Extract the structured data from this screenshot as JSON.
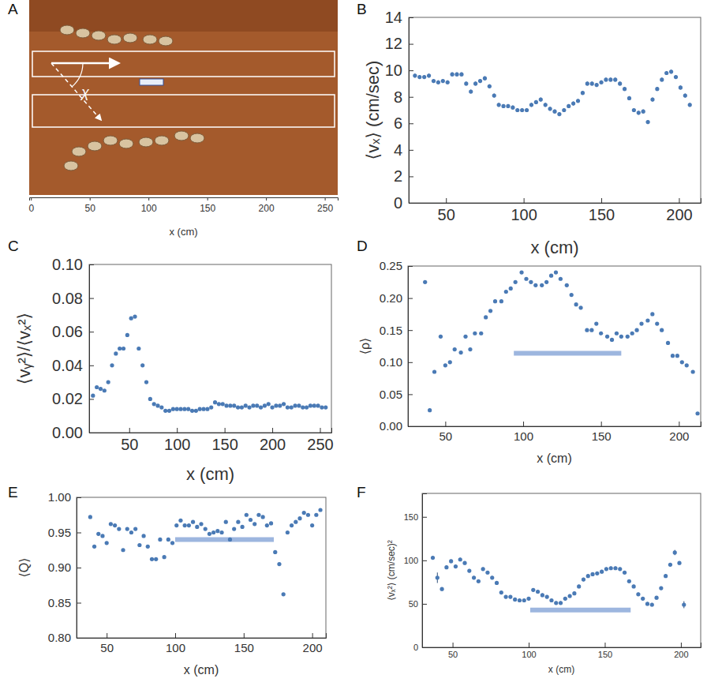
{
  "chart_data": [
    {
      "type": "image",
      "panel": "A",
      "annotation": "χ",
      "xlabel": "x (cm)",
      "xlim": [
        -1.5,
        261
      ],
      "xticks": [
        0,
        50,
        100,
        150,
        200,
        250
      ]
    },
    {
      "type": "scatter",
      "panel": "B",
      "xlabel": "x (cm)",
      "ylabel": "⟨vₓ⟩ (cm/sec)",
      "color": "#4a7ab5",
      "marker": "circle",
      "xlim": [
        26,
        214
      ],
      "xticks": [
        50,
        100,
        150,
        200
      ],
      "ylim": [
        0,
        14
      ],
      "yticks": [
        0,
        2,
        4,
        6,
        8,
        10,
        12,
        14
      ],
      "x": [
        30,
        33,
        36,
        39,
        42,
        45,
        48,
        51,
        54,
        57,
        60,
        63,
        66,
        69,
        72,
        75,
        78,
        81,
        84,
        87,
        90,
        93,
        96,
        99,
        102,
        105,
        108,
        111,
        114,
        117,
        120,
        123,
        126,
        129,
        132,
        135,
        138,
        141,
        144,
        147,
        150,
        153,
        156,
        159,
        162,
        165,
        168,
        171,
        174,
        177,
        180,
        183,
        186,
        189,
        192,
        195,
        198,
        201,
        204,
        207
      ],
      "values": [
        9.6,
        9.5,
        9.5,
        9.6,
        9.2,
        9.1,
        9.2,
        9.1,
        9.7,
        9.7,
        9.7,
        9.0,
        8.4,
        9.0,
        9.2,
        9.4,
        8.8,
        8.1,
        7.4,
        7.3,
        7.3,
        7.2,
        7.0,
        7.0,
        7.0,
        7.4,
        7.6,
        7.8,
        7.4,
        7.1,
        6.9,
        6.7,
        7.0,
        7.3,
        7.5,
        7.7,
        8.3,
        9.0,
        9.0,
        8.9,
        9.1,
        9.3,
        9.3,
        9.3,
        9.0,
        8.6,
        7.9,
        7.0,
        6.8,
        6.9,
        6.1,
        7.8,
        8.6,
        9.3,
        9.8,
        9.9,
        9.5,
        8.7,
        8.1,
        7.4
      ],
      "errors": [
        0.15,
        0.15,
        0.15,
        0.15,
        0.15,
        0.15,
        0.15,
        0.15,
        0.15,
        0.15,
        0.15,
        0.15,
        0.15,
        0.15,
        0.15,
        0.15,
        0.15,
        0.15,
        0.15,
        0.15,
        0.15,
        0.15,
        0.15,
        0.15,
        0.15,
        0.15,
        0.15,
        0.15,
        0.15,
        0.15,
        0.15,
        0.15,
        0.15,
        0.15,
        0.15,
        0.15,
        0.15,
        0.15,
        0.15,
        0.15,
        0.15,
        0.15,
        0.15,
        0.15,
        0.15,
        0.15,
        0.15,
        0.15,
        0.15,
        0.15,
        0.15,
        0.15,
        0.15,
        0.15,
        0.15,
        0.15,
        0.15,
        0.15,
        0.15,
        0.15
      ]
    },
    {
      "type": "scatter",
      "panel": "C",
      "xlabel": "x (cm)",
      "ylabel": "⟨vᵧ²⟩/⟨vₓ²⟩",
      "color": "#4a7ab5",
      "marker": "circle",
      "xlim": [
        8,
        262
      ],
      "xticks": [
        50,
        100,
        150,
        200,
        250
      ],
      "ylim": [
        0,
        0.1
      ],
      "yticks": [
        {
          "value": 0,
          "label": "0.00"
        },
        {
          "value": 0.02,
          "label": "0.02"
        },
        {
          "value": 0.04,
          "label": "0.04"
        },
        {
          "value": 0.06,
          "label": "0.06"
        },
        {
          "value": 0.08,
          "label": "0.08"
        },
        {
          "value": 0.1,
          "label": "0.10"
        }
      ],
      "x": [
        12,
        16,
        20,
        24,
        28,
        32,
        36,
        40,
        44,
        48,
        52,
        56,
        60,
        64,
        68,
        72,
        76,
        80,
        84,
        88,
        92,
        96,
        100,
        104,
        108,
        112,
        116,
        120,
        124,
        128,
        132,
        136,
        140,
        144,
        148,
        152,
        156,
        160,
        164,
        168,
        172,
        176,
        180,
        184,
        188,
        192,
        196,
        200,
        204,
        208,
        212,
        216,
        220,
        224,
        228,
        232,
        236,
        240,
        244,
        248,
        252,
        256
      ],
      "values": [
        0.022,
        0.027,
        0.026,
        0.025,
        0.03,
        0.04,
        0.047,
        0.05,
        0.05,
        0.058,
        0.068,
        0.069,
        0.05,
        0.04,
        0.03,
        0.02,
        0.017,
        0.016,
        0.015,
        0.013,
        0.013,
        0.014,
        0.014,
        0.014,
        0.014,
        0.014,
        0.013,
        0.013,
        0.014,
        0.014,
        0.014,
        0.015,
        0.018,
        0.017,
        0.017,
        0.016,
        0.016,
        0.016,
        0.015,
        0.015,
        0.016,
        0.015,
        0.016,
        0.016,
        0.015,
        0.016,
        0.017,
        0.015,
        0.016,
        0.016,
        0.017,
        0.015,
        0.015,
        0.016,
        0.016,
        0.015,
        0.015,
        0.016,
        0.016,
        0.016,
        0.015,
        0.015
      ]
    },
    {
      "type": "scatter",
      "panel": "D",
      "xlabel": "x (cm)",
      "ylabel": "⟨ρ⟩",
      "color": "#4a7ab5",
      "marker": "circle",
      "xlim": [
        26,
        214
      ],
      "xticks": [
        50,
        100,
        150,
        200
      ],
      "ylim": [
        0,
        0.25
      ],
      "yticks": [
        {
          "value": 0,
          "label": "0.00"
        },
        {
          "value": 0.05,
          "label": "0.05"
        },
        {
          "value": 0.1,
          "label": "0.10"
        },
        {
          "value": 0.15,
          "label": "0.15"
        },
        {
          "value": 0.2,
          "label": "0.20"
        },
        {
          "value": 0.25,
          "label": "0.25"
        }
      ],
      "x": [
        37,
        40,
        43,
        47,
        50,
        53,
        56,
        60,
        63,
        66,
        69,
        73,
        76,
        79,
        82,
        86,
        89,
        92,
        95,
        99,
        102,
        105,
        108,
        112,
        115,
        118,
        121,
        124,
        128,
        131,
        134,
        137,
        141,
        144,
        147,
        150,
        154,
        157,
        160,
        163,
        167,
        170,
        173,
        176,
        180,
        183,
        186,
        189,
        193,
        196,
        199,
        202,
        205,
        209,
        212
      ],
      "values": [
        0.225,
        0.025,
        0.085,
        0.14,
        0.095,
        0.1,
        0.12,
        0.115,
        0.14,
        0.12,
        0.145,
        0.145,
        0.17,
        0.18,
        0.195,
        0.195,
        0.21,
        0.215,
        0.225,
        0.24,
        0.23,
        0.225,
        0.22,
        0.22,
        0.225,
        0.235,
        0.24,
        0.23,
        0.22,
        0.205,
        0.19,
        0.185,
        0.15,
        0.15,
        0.16,
        0.145,
        0.14,
        0.135,
        0.145,
        0.14,
        0.14,
        0.145,
        0.15,
        0.16,
        0.165,
        0.175,
        0.16,
        0.15,
        0.13,
        0.11,
        0.11,
        0.1,
        0.095,
        0.085,
        0.02
      ],
      "band": {
        "x": [
          94,
          163
        ],
        "value": 0.114
      }
    },
    {
      "type": "scatter",
      "panel": "E",
      "xlabel": "x (cm)",
      "ylabel": "⟨Q⟩",
      "color": "#4a7ab5",
      "marker": "circle",
      "xlim": [
        28,
        210
      ],
      "xticks": [
        50,
        100,
        150,
        200
      ],
      "ylim": [
        0.8,
        1.0
      ],
      "yticks": [
        {
          "value": 0.8,
          "label": "0.80"
        },
        {
          "value": 0.85,
          "label": "0.85"
        },
        {
          "value": 0.9,
          "label": "0.90"
        },
        {
          "value": 0.95,
          "label": "0.95"
        },
        {
          "value": 1.0,
          "label": "1.00"
        }
      ],
      "x": [
        38,
        41,
        44,
        47,
        50,
        53,
        56,
        59,
        62,
        65,
        68,
        71,
        74,
        77,
        80,
        83,
        86,
        89,
        92,
        95,
        98,
        101,
        104,
        107,
        110,
        113,
        116,
        119,
        122,
        125,
        128,
        131,
        134,
        137,
        140,
        143,
        146,
        149,
        152,
        155,
        158,
        161,
        164,
        167,
        170,
        173,
        176,
        179,
        182,
        185,
        188,
        191,
        194,
        197,
        200,
        203,
        206
      ],
      "values": [
        0.972,
        0.93,
        0.948,
        0.945,
        0.935,
        0.962,
        0.96,
        0.955,
        0.925,
        0.955,
        0.95,
        0.955,
        0.932,
        0.945,
        0.93,
        0.912,
        0.912,
        0.94,
        0.915,
        0.94,
        0.935,
        0.96,
        0.967,
        0.96,
        0.96,
        0.965,
        0.958,
        0.962,
        0.955,
        0.948,
        0.95,
        0.952,
        0.95,
        0.965,
        0.94,
        0.955,
        0.965,
        0.958,
        0.975,
        0.968,
        0.962,
        0.975,
        0.972,
        0.96,
        0.963,
        0.922,
        0.905,
        0.862,
        0.95,
        0.96,
        0.965,
        0.97,
        0.978,
        0.975,
        0.96,
        0.975,
        0.982
      ],
      "band": {
        "x": [
          100,
          172
        ],
        "value": 0.94
      }
    },
    {
      "type": "scatter",
      "panel": "F",
      "xlabel": "x (cm)",
      "ylabel": "⟨vₓ²⟩ (cm/sec)²",
      "color": "#4a7ab5",
      "marker": "circle",
      "xlim": [
        30,
        213
      ],
      "xticks": [
        50,
        100,
        150,
        200
      ],
      "ylim": [
        0,
        177
      ],
      "yticks": [
        0,
        50,
        100,
        150
      ],
      "x": [
        37,
        40,
        43,
        46,
        49,
        52,
        55,
        58,
        61,
        64,
        67,
        70,
        73,
        76,
        79,
        82,
        85,
        88,
        91,
        94,
        97,
        100,
        103,
        106,
        109,
        112,
        115,
        118,
        121,
        124,
        127,
        130,
        133,
        136,
        139,
        142,
        145,
        148,
        151,
        154,
        157,
        160,
        163,
        166,
        169,
        172,
        175,
        178,
        181,
        184,
        187,
        190,
        193,
        196,
        199,
        202
      ],
      "values": [
        103,
        80,
        67,
        92,
        99,
        93,
        101,
        97,
        88,
        80,
        76,
        90,
        86,
        80,
        74,
        63,
        58,
        58,
        55,
        54,
        54,
        56,
        66,
        64,
        60,
        58,
        54,
        51,
        51,
        56,
        59,
        62,
        70,
        78,
        82,
        84,
        85,
        87,
        90,
        91,
        91,
        90,
        86,
        76,
        70,
        61,
        56,
        50,
        49,
        57,
        68,
        82,
        95,
        109,
        97,
        49
      ],
      "errors": [
        2,
        6,
        2,
        2,
        2,
        2,
        2,
        2,
        2,
        2,
        2,
        2,
        2,
        2,
        2,
        2,
        2,
        2,
        2,
        2,
        2,
        2,
        2,
        2,
        2,
        2,
        2,
        2,
        2,
        2,
        2,
        2,
        2,
        2,
        2,
        2,
        2,
        2,
        2,
        2,
        2,
        2,
        2,
        2,
        2,
        2,
        2,
        2,
        2,
        2,
        2,
        2,
        2,
        3,
        2,
        4
      ],
      "band": {
        "x": [
          101,
          167
        ],
        "value": 43
      }
    }
  ]
}
